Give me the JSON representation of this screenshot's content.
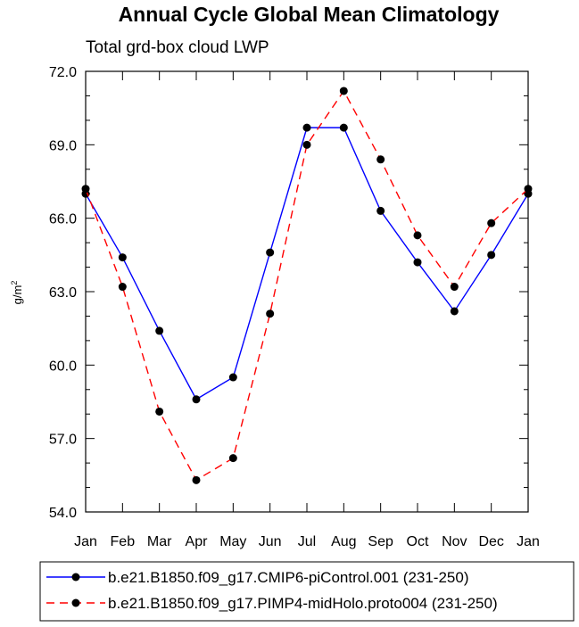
{
  "chart_data": {
    "type": "line",
    "title": "Annual Cycle Global Mean Climatology",
    "subtitle": "Total grd-box cloud LWP",
    "ylabel_base": "g/m",
    "ylabel_sup": "2",
    "ylim": [
      54.0,
      72.0
    ],
    "yticks": [
      "54.0",
      "57.0",
      "60.0",
      "63.0",
      "66.0",
      "69.0",
      "72.0"
    ],
    "categories": [
      "Jan",
      "Feb",
      "Mar",
      "Apr",
      "May",
      "Jun",
      "Jul",
      "Aug",
      "Sep",
      "Oct",
      "Nov",
      "Dec",
      "Jan"
    ],
    "series": [
      {
        "name": "b.e21.B1850.f09_g17.CMIP6-piControl.001 (231-250)",
        "color": "#0000ff",
        "dash": "solid",
        "values": [
          67.0,
          64.4,
          61.4,
          58.6,
          59.5,
          64.6,
          69.7,
          69.7,
          66.3,
          64.2,
          62.2,
          64.5,
          67.0
        ]
      },
      {
        "name": "b.e21.B1850.f09_g17.PIMP4-midHolo.proto004 (231-250)",
        "color": "#ff0000",
        "dash": "dashed",
        "values": [
          67.2,
          63.2,
          58.1,
          55.3,
          56.2,
          62.1,
          69.0,
          71.2,
          68.4,
          65.3,
          63.2,
          65.8,
          67.2
        ]
      }
    ],
    "legend_position": "bottom"
  }
}
